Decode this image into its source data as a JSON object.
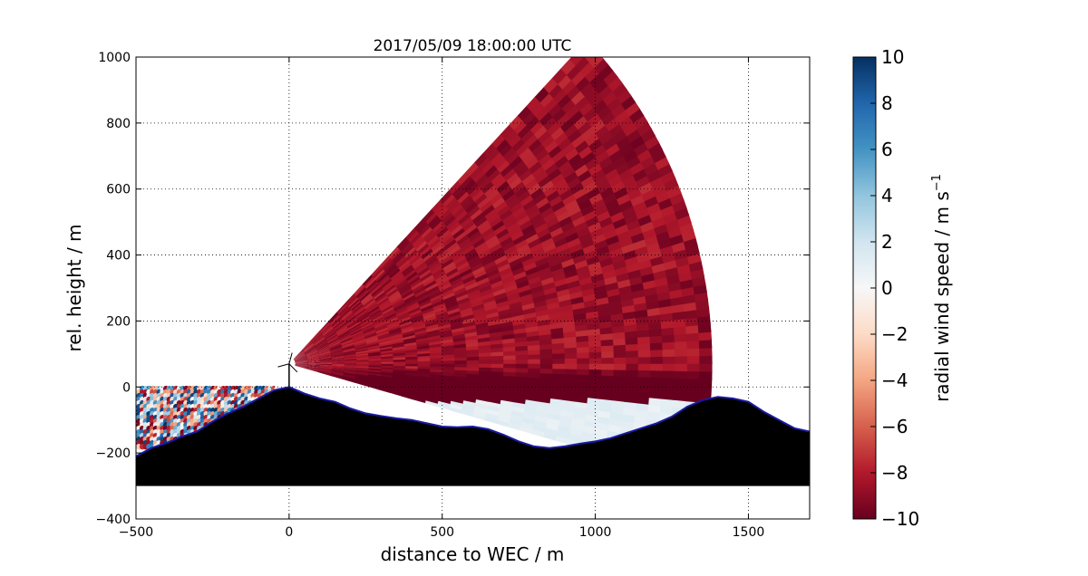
{
  "chart_data": {
    "type": "heatmap",
    "title": "2017/05/09 18:00:00 UTC",
    "xlabel": "distance to WEC / m",
    "ylabel": "rel. height / m",
    "xlim": [
      -500,
      1700
    ],
    "ylim": [
      -400,
      1000
    ],
    "xticks": [
      -500,
      0,
      500,
      1000,
      1500
    ],
    "yticks": [
      -400,
      -200,
      0,
      200,
      400,
      600,
      800,
      1000
    ],
    "xtick_labels": [
      "−500",
      "0",
      "500",
      "1000",
      "1500"
    ],
    "ytick_labels": [
      "−400",
      "−200",
      "0",
      "200",
      "400",
      "600",
      "800",
      "1000"
    ],
    "grid": true,
    "colorbar": {
      "label": "radial wind speed / m s",
      "label_superscript": "−1",
      "range": [
        -10,
        10
      ],
      "ticks": [
        10,
        8,
        6,
        4,
        2,
        0,
        -2,
        -4,
        -6,
        -8,
        -10
      ],
      "tick_labels": [
        "10",
        "8",
        "6",
        "4",
        "2",
        "0",
        "−2",
        "−4",
        "−6",
        "−8",
        "−10"
      ],
      "colormap": "RdBu",
      "colors": [
        "#67001f",
        "#b2182b",
        "#d6604d",
        "#f4a582",
        "#fddbc7",
        "#f7f7f7",
        "#d1e5f0",
        "#92c5de",
        "#4393c3",
        "#2166ac",
        "#053061"
      ]
    },
    "scan": {
      "center": [
        0,
        70
      ],
      "max_range_m": 1370,
      "max_elevation_deg": 45,
      "wind_speed_far": -8.6,
      "wind_speed_near_surface": 1.0
    },
    "terrain": {
      "color": "#000000",
      "outline_color": "#1a1aa0",
      "bottom": -300,
      "profile": [
        [
          -500,
          -210
        ],
        [
          -450,
          -185
        ],
        [
          -400,
          -170
        ],
        [
          -350,
          -150
        ],
        [
          -300,
          -135
        ],
        [
          -250,
          -105
        ],
        [
          -200,
          -80
        ],
        [
          -150,
          -60
        ],
        [
          -100,
          -35
        ],
        [
          -50,
          -10
        ],
        [
          0,
          0
        ],
        [
          50,
          -20
        ],
        [
          100,
          -35
        ],
        [
          150,
          -45
        ],
        [
          200,
          -65
        ],
        [
          250,
          -80
        ],
        [
          300,
          -88
        ],
        [
          350,
          -95
        ],
        [
          400,
          -100
        ],
        [
          450,
          -110
        ],
        [
          500,
          -120
        ],
        [
          550,
          -122
        ],
        [
          600,
          -120
        ],
        [
          650,
          -128
        ],
        [
          700,
          -145
        ],
        [
          750,
          -165
        ],
        [
          800,
          -180
        ],
        [
          850,
          -185
        ],
        [
          900,
          -180
        ],
        [
          950,
          -172
        ],
        [
          1000,
          -165
        ],
        [
          1050,
          -155
        ],
        [
          1100,
          -140
        ],
        [
          1150,
          -125
        ],
        [
          1200,
          -110
        ],
        [
          1250,
          -90
        ],
        [
          1300,
          -60
        ],
        [
          1350,
          -40
        ],
        [
          1400,
          -30
        ],
        [
          1450,
          -35
        ],
        [
          1500,
          -45
        ],
        [
          1550,
          -75
        ],
        [
          1600,
          -100
        ],
        [
          1650,
          -125
        ],
        [
          1700,
          -135
        ]
      ]
    },
    "turbine": {
      "x": 0,
      "hub_height": 70,
      "rotor_radius": 35
    }
  }
}
